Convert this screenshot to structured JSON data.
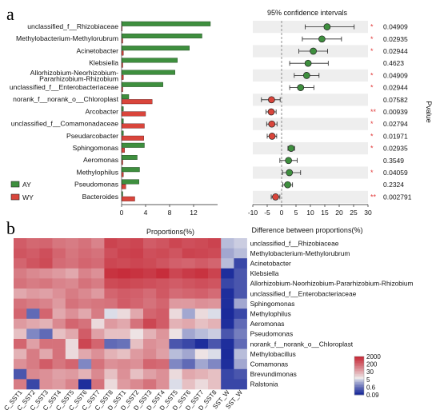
{
  "panels": {
    "a": "a",
    "b": "b"
  },
  "colors": {
    "AY": "#3e8f3e",
    "WY": "#d9453b",
    "ci_band": "#eeeeee",
    "star": "#e23b3b"
  },
  "legend": [
    {
      "key": "AY",
      "label": "AY"
    },
    {
      "key": "WY",
      "label": "WY"
    }
  ],
  "chart_data": [
    {
      "type": "bar",
      "orientation": "horizontal",
      "xlabel": "Proportions(%)",
      "xticks": [
        0,
        4,
        8,
        12
      ],
      "xlim": [
        0,
        16
      ],
      "categories": [
        "unclassified_f__Rhizobiaceae",
        "Methylobacterium-Methylorubrum",
        "Acinetobacter",
        "Klebsiella",
        "Allorhizobium-Neorhizobium-Pararhizobium-Rhizobium",
        "unclassified_f__Enterobacteriaceae",
        "norank_f__norank_o__Chloroplast",
        "Arcobacter",
        "unclassified_f__Comamonadaceae",
        "Pseudarcobacter",
        "Sphingomonas",
        "Aeromonas",
        "Methylophilus",
        "Pseudomonas",
        "Bacteroides"
      ],
      "series": [
        {
          "name": "AY",
          "values": [
            14.8,
            13.4,
            11.3,
            9.3,
            8.9,
            6.9,
            1.2,
            0.3,
            0.3,
            0.3,
            3.8,
            2.6,
            3.0,
            2.9,
            0.2
          ]
        },
        {
          "name": "WY",
          "values": [
            0.1,
            0.2,
            0.3,
            0.2,
            0.3,
            0.2,
            5.1,
            4.0,
            3.8,
            3.7,
            0.5,
            0.2,
            0.3,
            0.7,
            2.2
          ]
        }
      ]
    },
    {
      "type": "scatter",
      "title": "95% confidence intervals",
      "xlabel": "Difference between proportions(%)",
      "xticks": [
        -10,
        -5,
        0,
        5,
        10,
        15,
        20,
        25,
        30
      ],
      "xlim": [
        -10,
        30
      ],
      "ylabel_right": "Pvalue",
      "points": [
        {
          "taxon": "unclassified_f__Rhizobiaceae",
          "diff": 15.8,
          "lo": 8.2,
          "hi": 25.2,
          "group": "AY",
          "sig": "*",
          "pvalue": "0.04909"
        },
        {
          "taxon": "Methylobacterium-Methylorubrum",
          "diff": 14.0,
          "lo": 7.2,
          "hi": 20.8,
          "group": "AY",
          "sig": "*",
          "pvalue": "0.02935"
        },
        {
          "taxon": "Acinetobacter",
          "diff": 11.0,
          "lo": 6.0,
          "hi": 16.0,
          "group": "AY",
          "sig": "*",
          "pvalue": "0.02944"
        },
        {
          "taxon": "Klebsiella",
          "diff": 9.2,
          "lo": 2.8,
          "hi": 16.2,
          "group": "AY",
          "sig": "",
          "pvalue": "0.4623"
        },
        {
          "taxon": "Allorhizobium-Neorhizobium-Pararhizobium-Rhizobium",
          "diff": 8.7,
          "lo": 4.4,
          "hi": 13.0,
          "group": "AY",
          "sig": "*",
          "pvalue": "0.04909"
        },
        {
          "taxon": "unclassified_f__Enterobacteriaceae",
          "diff": 6.6,
          "lo": 2.8,
          "hi": 11.2,
          "group": "AY",
          "sig": "*",
          "pvalue": "0.02944"
        },
        {
          "taxon": "norank_f__norank_o__Chloroplast",
          "diff": -3.5,
          "lo": -7.0,
          "hi": -0.5,
          "group": "WY",
          "sig": "",
          "pvalue": "0.07582"
        },
        {
          "taxon": "Arcobacter",
          "diff": -3.6,
          "lo": -5.4,
          "hi": -1.9,
          "group": "WY",
          "sig": "**",
          "pvalue": "0.00939"
        },
        {
          "taxon": "unclassified_f__Comamonadaceae",
          "diff": -3.4,
          "lo": -5.2,
          "hi": -1.6,
          "group": "WY",
          "sig": "*",
          "pvalue": "0.02794"
        },
        {
          "taxon": "Pseudarcobacter",
          "diff": -3.3,
          "lo": -5.0,
          "hi": -1.7,
          "group": "WY",
          "sig": "*",
          "pvalue": "0.01971"
        },
        {
          "taxon": "Sphingomonas",
          "diff": 3.3,
          "lo": 2.2,
          "hi": 4.5,
          "group": "AY",
          "sig": "*",
          "pvalue": "0.02935"
        },
        {
          "taxon": "Aeromonas",
          "diff": 2.4,
          "lo": -0.6,
          "hi": 5.4,
          "group": "AY",
          "sig": "",
          "pvalue": "0.3549"
        },
        {
          "taxon": "Methylophilus",
          "diff": 2.7,
          "lo": 0.3,
          "hi": 6.6,
          "group": "AY",
          "sig": "*",
          "pvalue": "0.04059"
        },
        {
          "taxon": "Pseudomonas",
          "diff": 2.1,
          "lo": 0.4,
          "hi": 3.8,
          "group": "AY",
          "sig": "",
          "pvalue": "0.2324"
        },
        {
          "taxon": "Bacteroides",
          "diff": -2.1,
          "lo": -3.6,
          "hi": -0.6,
          "group": "WY",
          "sig": "**",
          "pvalue": "0.002791"
        }
      ]
    },
    {
      "type": "heatmap",
      "rows": [
        "unclassified_f__Rhizobiaceae",
        "Methylobacterium-Methylorubrum",
        "Acinetobacter",
        "Klebsiella",
        "Allorhizobium-Neorhizobium-Pararhizobium-Rhizobium",
        "unclassified_f__Enterobacteriaceae",
        "Sphingomonas",
        "Methylophilus",
        "Aeromonas",
        "Pseudomonas",
        "norank_f__norank_o__Chloroplast",
        "Methylobacillus",
        "Comamonas",
        "Brevundimonas",
        "Ralstonia"
      ],
      "columns": [
        "C_SST1",
        "C_SST2",
        "C_SST3",
        "C_SST4",
        "C_SST5",
        "C_SST6",
        "C_SST7",
        "C_SST8",
        "D_SST1",
        "D_SST2",
        "D_SST3",
        "D_SST4",
        "D_SST5",
        "D_SST6",
        "D_SST7",
        "D_SST8",
        "C_SST_W",
        "D_SST_W"
      ],
      "colorbar": {
        "ticks": [
          "2000",
          "200",
          "30",
          "5",
          "0.6",
          "0.09"
        ],
        "colors": [
          "#c62a38",
          "#f0f0f0",
          "#1a2a9a"
        ]
      },
      "values": [
        [
          400,
          280,
          300,
          180,
          150,
          200,
          120,
          900,
          700,
          800,
          400,
          500,
          800,
          600,
          700,
          900,
          3,
          4
        ],
        [
          500,
          400,
          600,
          300,
          180,
          250,
          200,
          600,
          900,
          1000,
          600,
          700,
          500,
          900,
          800,
          700,
          2,
          3
        ],
        [
          300,
          500,
          700,
          250,
          200,
          300,
          250,
          800,
          700,
          800,
          700,
          500,
          350,
          300,
          400,
          300,
          3,
          0.2
        ],
        [
          150,
          100,
          80,
          60,
          40,
          120,
          80,
          1500,
          1800,
          1500,
          1200,
          1800,
          800,
          1200,
          1500,
          900,
          0.1,
          0.3
        ],
        [
          200,
          150,
          180,
          120,
          100,
          200,
          150,
          700,
          800,
          700,
          600,
          500,
          400,
          500,
          600,
          500,
          0.2,
          0.3
        ],
        [
          40,
          60,
          50,
          80,
          150,
          100,
          60,
          300,
          400,
          350,
          250,
          450,
          250,
          300,
          350,
          250,
          0.1,
          0.3
        ],
        [
          200,
          150,
          120,
          60,
          200,
          150,
          180,
          200,
          400,
          300,
          200,
          300,
          60,
          60,
          80,
          70,
          0.1,
          2
        ],
        [
          300,
          0.5,
          300,
          40,
          80,
          40,
          150,
          5,
          10,
          40,
          300,
          400,
          10,
          2,
          10,
          5,
          0.05,
          0.2
        ],
        [
          60,
          40,
          30,
          100,
          300,
          200,
          10,
          60,
          40,
          200,
          800,
          400,
          30,
          40,
          20,
          30,
          0.1,
          0.5
        ],
        [
          20,
          1,
          0.5,
          20,
          40,
          400,
          50,
          20,
          20,
          8,
          30,
          70,
          8,
          2,
          3,
          4,
          0.3,
          0.8
        ],
        [
          300,
          50,
          200,
          200,
          10,
          800,
          300,
          0.5,
          0.6,
          20,
          80,
          60,
          0.3,
          0.2,
          0.1,
          0.3,
          0.1,
          0.5
        ],
        [
          30,
          150,
          40,
          200,
          10,
          40,
          80,
          30,
          20,
          60,
          100,
          50,
          3,
          2,
          8,
          5,
          0.09,
          3
        ],
        [
          80,
          150,
          400,
          180,
          300,
          1,
          200,
          80,
          100,
          80,
          300,
          250,
          1,
          0.5,
          2,
          1,
          0.1,
          2
        ],
        [
          0.3,
          100,
          80,
          50,
          60,
          30,
          100,
          20,
          80,
          20,
          50,
          80,
          10,
          40,
          30,
          20,
          0.2,
          0.3
        ],
        [
          150,
          0.2,
          80,
          60,
          120,
          0.1,
          200,
          10,
          60,
          100,
          200,
          80,
          5,
          20,
          10,
          20,
          0.2,
          0.2
        ]
      ]
    }
  ]
}
